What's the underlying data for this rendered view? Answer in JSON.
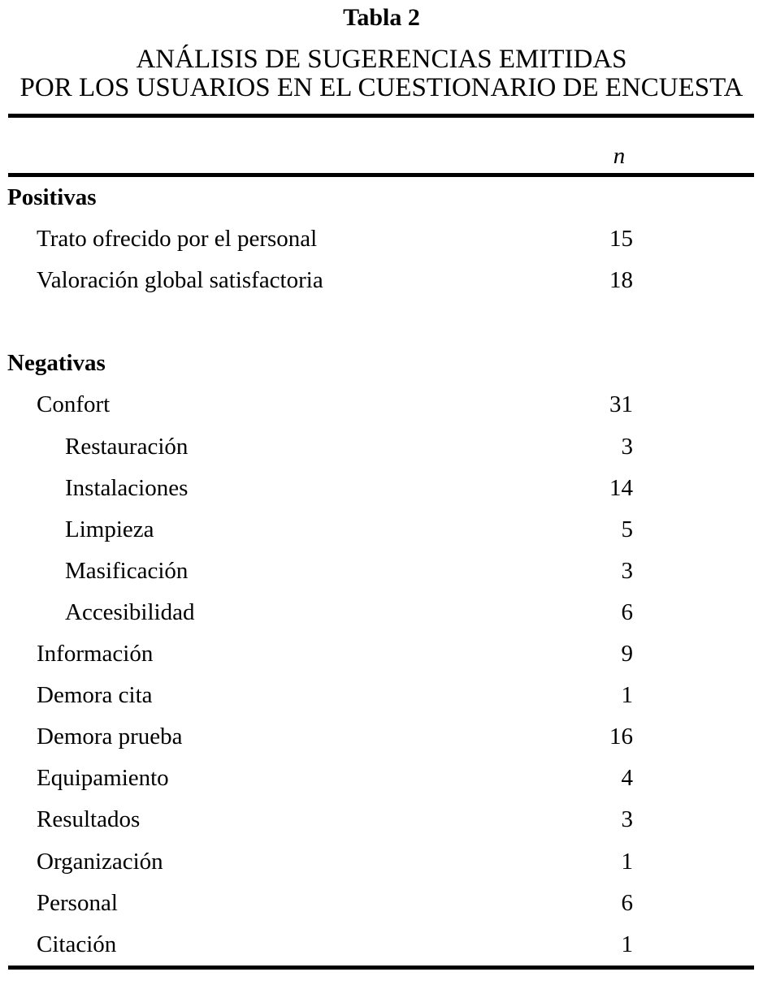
{
  "page": {
    "title": "Tabla 2",
    "subtitle_line1": "ANÁLISIS DE SUGERENCIAS EMITIDAS",
    "subtitle_line2": "POR LOS USUARIOS EN EL CUESTIONARIO DE ENCUESTA",
    "column_header": "n",
    "text_color": "#000000",
    "background_color": "#ffffff",
    "rule_color": "#000000"
  },
  "sections": [
    {
      "header": "Positivas",
      "rows": [
        {
          "label": "Trato ofrecido por el personal",
          "n": "15",
          "level": 1
        },
        {
          "label": "Valoración global satisfactoria",
          "n": "18",
          "level": 1
        }
      ]
    },
    {
      "header": "Negativas",
      "rows": [
        {
          "label": "Confort",
          "n": "31",
          "level": 1
        },
        {
          "label": "Restauración",
          "n": "3",
          "level": 2
        },
        {
          "label": "Instalaciones",
          "n": "14",
          "level": 2
        },
        {
          "label": "Limpieza",
          "n": "5",
          "level": 2
        },
        {
          "label": "Masificación",
          "n": "3",
          "level": 2
        },
        {
          "label": "Accesibilidad",
          "n": "6",
          "level": 2
        },
        {
          "label": "Información",
          "n": "9",
          "level": 1
        },
        {
          "label": "Demora cita",
          "n": "1",
          "level": 1
        },
        {
          "label": "Demora prueba",
          "n": "16",
          "level": 1
        },
        {
          "label": "Equipamiento",
          "n": "4",
          "level": 1
        },
        {
          "label": "Resultados",
          "n": "3",
          "level": 1
        },
        {
          "label": "Organización",
          "n": "1",
          "level": 1
        },
        {
          "label": "Personal",
          "n": "6",
          "level": 1
        },
        {
          "label": "Citación",
          "n": "1",
          "level": 1
        }
      ]
    }
  ]
}
